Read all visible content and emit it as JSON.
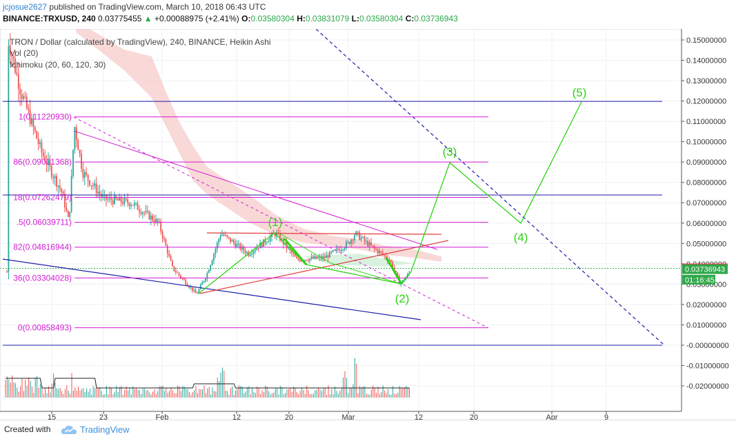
{
  "header": {
    "user": "jcjosue2627",
    "published": "published on TradingView.com, March 10, 2018 06:43 UTC",
    "symbol": "BINANCE:TRXUSD, 240",
    "last": "0.03775455",
    "change": "+0.00088975 (+2.41%)",
    "o_label": "O:",
    "o_value": "0.03580304",
    "h_label": "H:",
    "h_value": "0.03831079",
    "l_label": "L:",
    "l_value": "0.03580304",
    "c_label": "C:",
    "c_value": "0.03736943"
  },
  "legend": {
    "title": "TRON / Dollar (calculated by TradingView), 240, BINANCE, Heikin Ashi",
    "vol": "Vol (20)",
    "ichimoku": "Ichimoku (20, 60, 120, 30)"
  },
  "footer": {
    "made_with": "Created with",
    "brand": "TradingView"
  },
  "colors": {
    "up": "#26a69a",
    "down": "#ef5350",
    "fib": "#d21bd2",
    "blue": "#1a1aa8",
    "green_wave": "#2ad40f",
    "red_line": "#e23b3b",
    "cloud": "#f7c8c8",
    "axis_label_red": "#f23645",
    "axis_label_green": "#2fa84a"
  },
  "chart_data": {
    "type": "candlestick",
    "x_ticks": [
      "15",
      "23",
      "Feb",
      "12",
      "20",
      "Mar",
      "12",
      "20",
      "Apr",
      "9"
    ],
    "y_ticks": [
      "0.15000000",
      "0.14000000",
      "0.13000000",
      "0.12000000",
      "0.11000000",
      "0.10000000",
      "0.09000000",
      "0.08000000",
      "0.07000000",
      "0.06000000",
      "0.05000000",
      "0.04000000",
      "0.03000000",
      "0.02000000",
      "0.01000000",
      "-0.00000000",
      "-0.01000000",
      "-0.02000000"
    ],
    "y_tick_values": [
      0.15,
      0.14,
      0.13,
      0.12,
      0.11,
      0.1,
      0.09,
      0.08,
      0.07,
      0.06,
      0.05,
      0.04,
      0.03,
      0.02,
      0.01,
      0.0,
      -0.01,
      -0.02
    ],
    "ylim": [
      -0.0245,
      0.1545
    ],
    "price_labels": [
      {
        "text": "0.03775455",
        "value": 0.03775455,
        "color": "#f23645"
      },
      {
        "text": "0.03736943",
        "value": 0.03736943,
        "color": "#2fa84a"
      },
      {
        "text": "01:16:45",
        "value": 0.0322,
        "color": "#2fa84a"
      }
    ],
    "fib_levels": [
      {
        "label": "1(0.11220930)",
        "value": 0.1122093
      },
      {
        "label": "86(0.09001368)",
        "value": 0.09001368
      },
      {
        "label": "18(0.07262479)",
        "value": 0.07262479
      },
      {
        "label": ".5(0.06039711)",
        "value": 0.06039711
      },
      {
        "label": "82(0.04816944)",
        "value": 0.04816944
      },
      {
        "label": "36(0.03304028)",
        "value": 0.03304028
      },
      {
        "label": "0(0.00858493)",
        "value": 0.00858493
      }
    ],
    "horizontal_lines": [
      0.1198,
      0.0738,
      0.0
    ],
    "waves": [
      {
        "label": "(1)",
        "value": 0.0555
      },
      {
        "label": "(2)",
        "value": 0.0285
      },
      {
        "label": "(3)",
        "value": 0.0905
      },
      {
        "label": "(4)",
        "value": 0.06
      },
      {
        "label": "(5)",
        "value": 0.1195
      }
    ],
    "trend": "downtrend from ~0.15 in mid January to ~0.025 in early February, then range 0.025–0.058 into March"
  }
}
